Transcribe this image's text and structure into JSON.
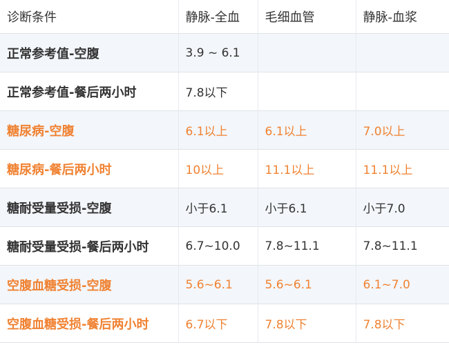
{
  "colors": {
    "highlight": "#f08232",
    "text": "#333333",
    "stripe": "#f3f6fa"
  },
  "headers": [
    "诊断条件",
    "静脉-全血",
    "毛细血管",
    "静脉-血浆"
  ],
  "rows": [
    {
      "cells": [
        "正常参考值-空腹",
        "3.9 ~ 6.1",
        "",
        ""
      ],
      "highlight": false
    },
    {
      "cells": [
        "正常参考值-餐后两小时",
        "7.8以下",
        "",
        ""
      ],
      "highlight": false
    },
    {
      "cells": [
        "糖尿病-空腹",
        "6.1以上",
        "6.1以上",
        "7.0以上"
      ],
      "highlight": true
    },
    {
      "cells": [
        "糖尿病-餐后两小时",
        "10以上",
        "11.1以上",
        "11.1以上"
      ],
      "highlight": true
    },
    {
      "cells": [
        "糖耐受量受损-空腹",
        "小于6.1",
        "小于6.1",
        "小于7.0"
      ],
      "highlight": false
    },
    {
      "cells": [
        "糖耐受量受损-餐后两小时",
        "6.7~10.0",
        "7.8~11.1",
        "7.8~11.1"
      ],
      "highlight": false
    },
    {
      "cells": [
        "空腹血糖受损-空腹",
        "5.6~6.1",
        "5.6~6.1",
        "6.1~7.0"
      ],
      "highlight": true
    },
    {
      "cells": [
        "空腹血糖受损-餐后两小时",
        "6.7以下",
        "7.8以下",
        "7.8以下"
      ],
      "highlight": true
    }
  ]
}
